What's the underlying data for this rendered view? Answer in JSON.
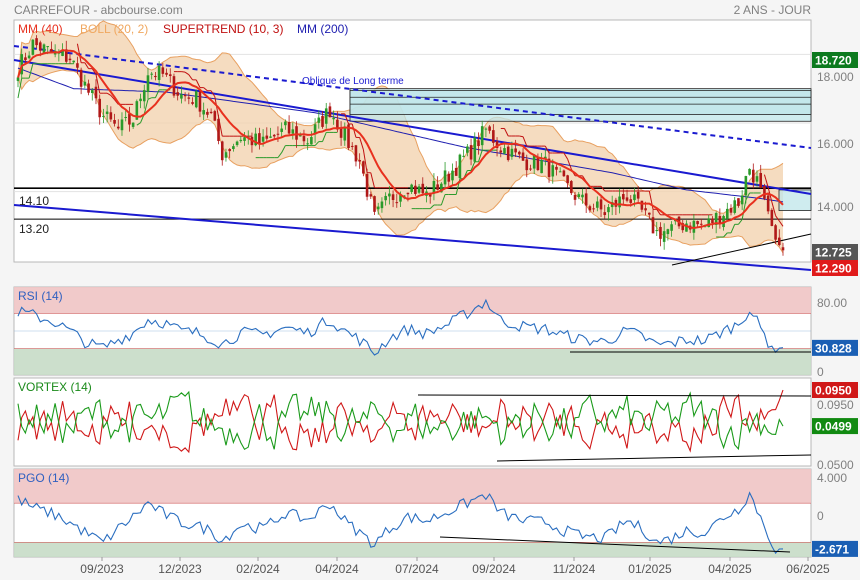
{
  "header": {
    "left_title": "CARREFOUR - abcbourse.com",
    "right_title": "2 ANS - JOUR"
  },
  "x_axis": {
    "tick_labels": [
      "09/2023",
      "12/2023",
      "02/2024",
      "04/2024",
      "07/2024",
      "09/2024",
      "11/2024",
      "01/2025",
      "04/2025",
      "06/2025"
    ]
  },
  "chart_data": [
    {
      "type": "line",
      "legend": [
        {
          "text": "MM (40)",
          "color": "#e8301e"
        },
        {
          "text": "BOLL (20, 2)",
          "color": "#f0a860"
        },
        {
          "text": "SUPERTREND (10, 3)",
          "color": "#c01010"
        },
        {
          "text": "MM (200)",
          "color": "#2020b0"
        }
      ],
      "annotation": "Oblique de Long terme",
      "hlines": [
        {
          "label": "14.10",
          "value": 14.1
        },
        {
          "label": "13.20",
          "value": 13.2
        }
      ],
      "y_ticks": [
        "18.000",
        "16.000",
        "14.000"
      ],
      "ylim": [
        11.95,
        19.0
      ],
      "badges": [
        {
          "text": "18.720",
          "value": 18.72,
          "bg": "#0c7a1e"
        },
        {
          "text": "12.725",
          "value": 12.725,
          "bg": "#555555"
        },
        {
          "text": "12.290",
          "value": 12.29,
          "bg": "#e01a1a"
        }
      ],
      "price_anchors": [
        [
          0,
          17.6
        ],
        [
          4,
          18.3
        ],
        [
          10,
          18.0
        ],
        [
          14,
          17.9
        ],
        [
          19,
          16.9
        ],
        [
          23,
          16.2
        ],
        [
          27,
          15.8
        ],
        [
          31,
          16.1
        ],
        [
          35,
          17.5
        ],
        [
          39,
          17.4
        ],
        [
          44,
          16.8
        ],
        [
          48,
          16.7
        ],
        [
          52,
          16.2
        ],
        [
          55,
          15.1
        ],
        [
          60,
          15.6
        ],
        [
          66,
          15.4
        ],
        [
          72,
          15.8
        ],
        [
          78,
          15.5
        ],
        [
          84,
          16.4
        ],
        [
          88,
          15.6
        ],
        [
          92,
          14.9
        ],
        [
          96,
          13.2
        ],
        [
          100,
          13.8
        ],
        [
          105,
          14.2
        ],
        [
          110,
          13.9
        ],
        [
          116,
          14.5
        ],
        [
          122,
          15.2
        ],
        [
          126,
          15.8
        ],
        [
          130,
          15.3
        ],
        [
          136,
          14.9
        ],
        [
          142,
          14.8
        ],
        [
          147,
          14.2
        ],
        [
          152,
          13.7
        ],
        [
          158,
          13.4
        ],
        [
          164,
          13.9
        ],
        [
          168,
          13.4
        ],
        [
          172,
          12.8
        ],
        [
          176,
          12.9
        ],
        [
          180,
          13.1
        ],
        [
          185,
          13.0
        ],
        [
          190,
          13.4
        ],
        [
          194,
          13.7
        ],
        [
          197,
          14.7
        ],
        [
          199,
          14.3
        ],
        [
          202,
          13.2
        ],
        [
          204,
          12.6
        ],
        [
          206,
          12.29
        ]
      ]
    },
    {
      "type": "line",
      "title": "RSI (14)",
      "y_ticks": [
        "80.00",
        "0"
      ],
      "ylim": [
        0,
        100
      ],
      "zones": [
        {
          "from": 70,
          "to": 100,
          "color": "#f0c4c4"
        },
        {
          "from": 0,
          "to": 30,
          "color": "#c6dcc6"
        }
      ],
      "badge": {
        "text": "30.828",
        "value": 30.828,
        "bg": "#1a5fb4"
      },
      "anchors": [
        [
          0,
          72
        ],
        [
          4,
          68
        ],
        [
          10,
          60
        ],
        [
          14,
          50
        ],
        [
          19,
          35
        ],
        [
          23,
          31
        ],
        [
          27,
          40
        ],
        [
          31,
          48
        ],
        [
          35,
          63
        ],
        [
          39,
          60
        ],
        [
          44,
          50
        ],
        [
          48,
          48
        ],
        [
          52,
          42
        ],
        [
          55,
          35
        ],
        [
          60,
          48
        ],
        [
          66,
          46
        ],
        [
          72,
          54
        ],
        [
          78,
          48
        ],
        [
          84,
          63
        ],
        [
          88,
          50
        ],
        [
          92,
          40
        ],
        [
          96,
          25
        ],
        [
          100,
          42
        ],
        [
          105,
          52
        ],
        [
          110,
          47
        ],
        [
          116,
          58
        ],
        [
          122,
          73
        ],
        [
          126,
          84
        ],
        [
          130,
          62
        ],
        [
          136,
          55
        ],
        [
          142,
          52
        ],
        [
          147,
          45
        ],
        [
          152,
          40
        ],
        [
          158,
          38
        ],
        [
          164,
          50
        ],
        [
          168,
          44
        ],
        [
          172,
          34
        ],
        [
          176,
          36
        ],
        [
          180,
          40
        ],
        [
          185,
          39
        ],
        [
          190,
          50
        ],
        [
          194,
          58
        ],
        [
          197,
          75
        ],
        [
          199,
          60
        ],
        [
          202,
          38
        ],
        [
          204,
          30
        ],
        [
          206,
          31
        ]
      ]
    },
    {
      "type": "line",
      "title": "VORTEX (14)",
      "y_ticks": [
        "0.0950",
        "0.0500"
      ],
      "ylim": [
        0.0,
        0.11
      ],
      "series_colors": [
        "#d01818",
        "#1a9a1a"
      ],
      "badges": [
        {
          "text": "0.0950",
          "value": 0.095,
          "bg": "#d01818"
        },
        {
          "text": "0.0499",
          "value": 0.0499,
          "bg": "#118a11"
        }
      ]
    },
    {
      "type": "line",
      "title": "PGO (14)",
      "y_ticks": [
        "4.000",
        "0"
      ],
      "ylim": [
        -3.5,
        5.5
      ],
      "zones": [
        {
          "from": 2,
          "to": 5.5,
          "color": "#f0c4c4"
        },
        {
          "from": -3.5,
          "to": -2,
          "color": "#c6dcc6"
        }
      ],
      "badge": {
        "text": "-2.671",
        "value": -2.671,
        "bg": "#1a5fb4"
      },
      "anchors": [
        [
          0,
          2.4
        ],
        [
          4,
          1.6
        ],
        [
          10,
          0.8
        ],
        [
          14,
          0.0
        ],
        [
          19,
          -1.2
        ],
        [
          23,
          -2.0
        ],
        [
          27,
          -0.6
        ],
        [
          31,
          0.6
        ],
        [
          35,
          2.0
        ],
        [
          39,
          1.0
        ],
        [
          44,
          0.0
        ],
        [
          48,
          -0.3
        ],
        [
          52,
          -0.8
        ],
        [
          55,
          -1.8
        ],
        [
          60,
          -0.2
        ],
        [
          66,
          -0.6
        ],
        [
          72,
          1.0
        ],
        [
          78,
          0.3
        ],
        [
          84,
          2.0
        ],
        [
          88,
          0.2
        ],
        [
          92,
          -1.0
        ],
        [
          96,
          -2.2
        ],
        [
          100,
          -0.6
        ],
        [
          105,
          0.6
        ],
        [
          110,
          0.2
        ],
        [
          116,
          1.2
        ],
        [
          122,
          2.2
        ],
        [
          126,
          2.9
        ],
        [
          130,
          1.0
        ],
        [
          136,
          0.2
        ],
        [
          142,
          0.1
        ],
        [
          147,
          -0.8
        ],
        [
          152,
          -1.4
        ],
        [
          158,
          -1.6
        ],
        [
          164,
          0.2
        ],
        [
          168,
          -0.6
        ],
        [
          172,
          -2.0
        ],
        [
          176,
          -1.6
        ],
        [
          180,
          -0.8
        ],
        [
          185,
          -1.0
        ],
        [
          190,
          0.6
        ],
        [
          194,
          1.4
        ],
        [
          197,
          3.0
        ],
        [
          199,
          1.4
        ],
        [
          202,
          -1.2
        ],
        [
          204,
          -2.7
        ],
        [
          206,
          -2.671
        ]
      ]
    }
  ]
}
